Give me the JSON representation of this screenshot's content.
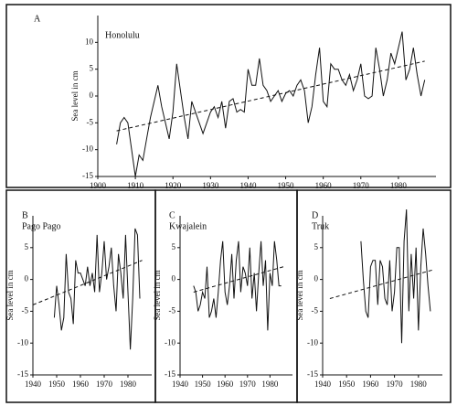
{
  "chart_data": [
    {
      "type": "line",
      "panel": "A",
      "title": "Honolulu",
      "y_label": "Sea level in cm",
      "xlim": [
        1900,
        1990
      ],
      "xticks": [
        1900,
        1910,
        1920,
        1930,
        1940,
        1950,
        1960,
        1970,
        1980
      ],
      "ylim": [
        -15,
        15
      ],
      "yticks": [
        -15,
        -10,
        -5,
        0,
        5,
        10
      ],
      "series": [
        {
          "color": "#111111",
          "dashed": false,
          "x": [
            1905,
            1906,
            1907,
            1908,
            1909,
            1910,
            1911,
            1912,
            1913,
            1914,
            1915,
            1916,
            1917,
            1918,
            1919,
            1920,
            1921,
            1922,
            1923,
            1924,
            1925,
            1926,
            1927,
            1928,
            1929,
            1930,
            1931,
            1932,
            1933,
            1934,
            1935,
            1936,
            1937,
            1938,
            1939,
            1940,
            1941,
            1942,
            1943,
            1944,
            1945,
            1946,
            1947,
            1948,
            1949,
            1950,
            1951,
            1952,
            1953,
            1954,
            1955,
            1956,
            1957,
            1958,
            1959,
            1960,
            1961,
            1962,
            1963,
            1964,
            1965,
            1966,
            1967,
            1968,
            1969,
            1970,
            1971,
            1972,
            1973,
            1974,
            1975,
            1976,
            1977,
            1978,
            1979,
            1980,
            1981,
            1982,
            1983,
            1984,
            1985,
            1986,
            1987
          ],
          "values": [
            -9,
            -5,
            -4,
            -5,
            -10,
            -15,
            -11,
            -12,
            -8,
            -4,
            -1,
            2,
            -2,
            -5,
            -8,
            -3,
            6,
            1,
            -4,
            -8,
            -1,
            -3,
            -5,
            -7,
            -5,
            -3,
            -2,
            -4,
            -1,
            -6,
            -1,
            -0.5,
            -3,
            -2.5,
            -3,
            5,
            2,
            2,
            7,
            2,
            1,
            -1,
            0,
            1,
            -1,
            0.5,
            1,
            0,
            2,
            3,
            1,
            -5,
            -2,
            4,
            9,
            -1,
            -2,
            6,
            5,
            5,
            3,
            2,
            4,
            1,
            3,
            6,
            0,
            -0.5,
            0,
            9,
            5,
            0,
            3,
            8,
            6,
            9,
            12,
            3,
            5,
            9,
            4,
            0,
            3
          ]
        },
        {
          "color": "#111111",
          "dashed": true,
          "x": [
            1905,
            1987
          ],
          "values": [
            -6.5,
            6.5
          ]
        }
      ]
    },
    {
      "type": "line",
      "panel": "B",
      "title": "Pago Pago",
      "y_label": "Sea level in cm",
      "xlim": [
        1940,
        1990
      ],
      "xticks": [
        1940,
        1950,
        1960,
        1970,
        1980
      ],
      "ylim": [
        -15,
        10
      ],
      "yticks": [
        -15,
        -10,
        -5,
        0,
        5
      ],
      "series": [
        {
          "color": "#111111",
          "dashed": false,
          "x": [
            1949,
            1950,
            1951,
            1952,
            1953,
            1954,
            1955,
            1956,
            1957,
            1958,
            1959,
            1960,
            1961,
            1962,
            1963,
            1964,
            1965,
            1966,
            1967,
            1968,
            1969,
            1970,
            1971,
            1972,
            1973,
            1974,
            1975,
            1976,
            1977,
            1978,
            1979,
            1980,
            1981,
            1982,
            1983,
            1984,
            1985
          ],
          "values": [
            -6,
            -1,
            -4,
            -8,
            -6,
            4,
            -2,
            -3,
            -7,
            3,
            1,
            1,
            0,
            -1,
            2,
            -1,
            1,
            -2,
            7,
            -2,
            1,
            6,
            0,
            2,
            5,
            -1,
            -5,
            4,
            1,
            -3,
            7,
            -2,
            -11,
            -3,
            8,
            7,
            -3
          ]
        },
        {
          "color": "#111111",
          "dashed": true,
          "x": [
            1940,
            1986
          ],
          "values": [
            -4,
            3
          ]
        }
      ]
    },
    {
      "type": "line",
      "panel": "C",
      "title": "Kwajalein",
      "y_label": "Sea level in cm",
      "xlim": [
        1940,
        1990
      ],
      "xticks": [
        1940,
        1950,
        1960,
        1970,
        1980
      ],
      "ylim": [
        -15,
        10
      ],
      "yticks": [
        -15,
        -10,
        -5,
        0,
        5
      ],
      "series": [
        {
          "color": "#111111",
          "dashed": false,
          "x": [
            1946,
            1947,
            1948,
            1949,
            1950,
            1951,
            1952,
            1953,
            1954,
            1955,
            1956,
            1957,
            1958,
            1959,
            1960,
            1961,
            1962,
            1963,
            1964,
            1965,
            1966,
            1967,
            1968,
            1969,
            1970,
            1971,
            1972,
            1973,
            1974,
            1975,
            1976,
            1977,
            1978,
            1979,
            1980,
            1981,
            1982,
            1983,
            1984,
            1985
          ],
          "values": [
            -1,
            -2,
            -5,
            -4,
            -2,
            -3,
            2,
            -6,
            -5,
            -3,
            -6,
            -2,
            3,
            6,
            -2,
            -4,
            -1,
            4,
            -3,
            3,
            6,
            -2,
            2,
            1,
            -1,
            5,
            -3,
            1,
            -5,
            1,
            6,
            -1,
            3,
            -8,
            1,
            -1,
            6,
            3,
            -1,
            -1
          ]
        },
        {
          "color": "#111111",
          "dashed": true,
          "x": [
            1946,
            1986
          ],
          "values": [
            -2,
            2
          ]
        }
      ]
    },
    {
      "type": "line",
      "panel": "D",
      "title": "Truk",
      "y_label": "Sea level in cm",
      "xlim": [
        1940,
        1990
      ],
      "xticks": [
        1940,
        1950,
        1960,
        1970,
        1980
      ],
      "ylim": [
        -15,
        10
      ],
      "yticks": [
        -15,
        -10,
        -5,
        0,
        5
      ],
      "series": [
        {
          "color": "#111111",
          "dashed": false,
          "x": [
            1956,
            1957,
            1958,
            1959,
            1960,
            1961,
            1962,
            1963,
            1964,
            1965,
            1966,
            1967,
            1968,
            1969,
            1970,
            1971,
            1972,
            1973,
            1974,
            1975,
            1976,
            1977,
            1978,
            1979,
            1980,
            1981,
            1982,
            1983,
            1984,
            1985
          ],
          "values": [
            6,
            0,
            -5,
            -6,
            2,
            3,
            3,
            -4,
            3,
            2,
            -3,
            -4,
            3,
            -5,
            -2,
            5,
            5,
            -10,
            6,
            11,
            -5,
            4,
            -3,
            5,
            -8,
            2,
            8,
            4,
            -1,
            -5
          ]
        },
        {
          "color": "#111111",
          "dashed": true,
          "x": [
            1943,
            1986
          ],
          "values": [
            -3,
            1.5
          ]
        }
      ]
    }
  ]
}
